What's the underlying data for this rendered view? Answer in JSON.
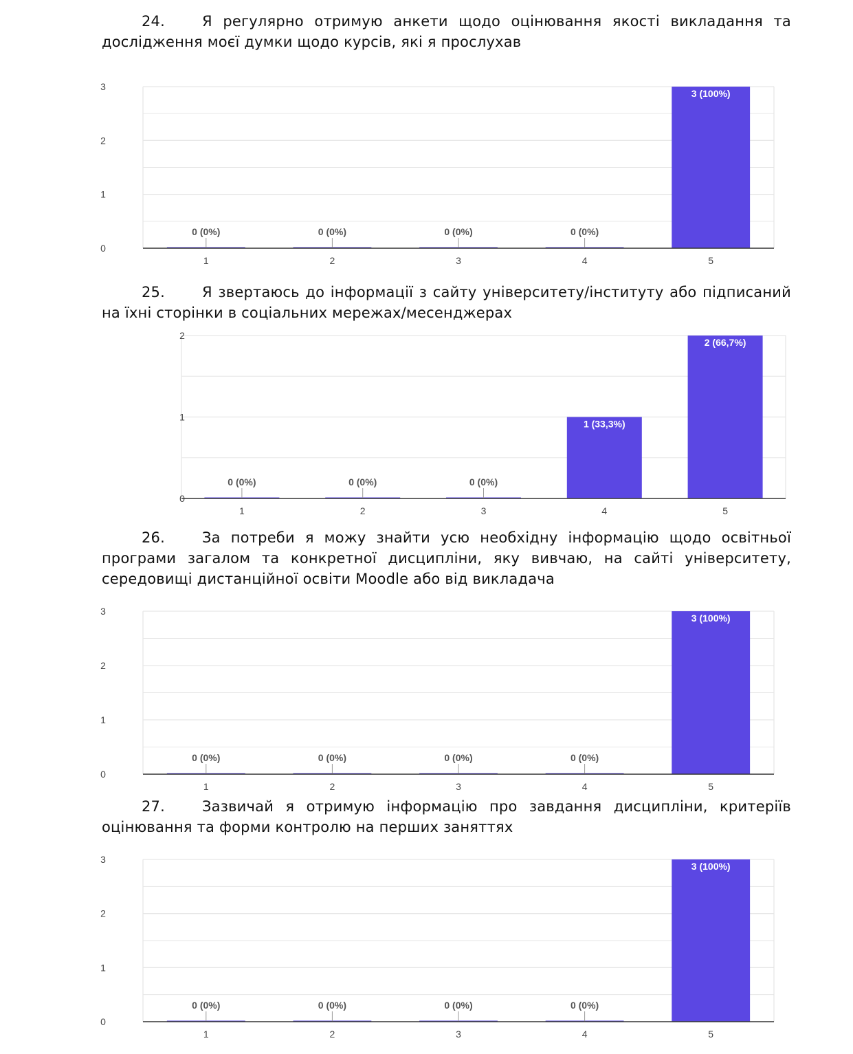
{
  "questions": [
    {
      "number": "24.",
      "text": "Я регулярно отримую анкети щодо оцінювання якості викладання та дослідження моєї думки щодо курсів, які я прослухав"
    },
    {
      "number": "25.",
      "text": "Я звертаюсь до інформації з сайту університету/інституту або підписаний на їхні сторінки в соціальних мережах/месенджерах"
    },
    {
      "number": "26.",
      "text": "За потреби я можу знайти усю необхідну інформацію щодо освітньої програми загалом та конкретної дисципліни, яку вивчаю, на сайті університету, середовищі дистанційної освіти Moodle або від викладача"
    },
    {
      "number": "27.",
      "text": "Зазвичай я отримую інформацію про завдання дисципліни, критеріїв оцінювання та форми контролю на перших заняттях"
    }
  ],
  "colors": {
    "bar": "#5b47e3",
    "grid": "#e6e6e6",
    "axis": "#333333"
  },
  "chart_data": [
    {
      "type": "bar",
      "categories": [
        "1",
        "2",
        "3",
        "4",
        "5"
      ],
      "values": [
        0,
        0,
        0,
        0,
        3
      ],
      "data_labels": [
        "0 (0%)",
        "0 (0%)",
        "0 (0%)",
        "0 (0%)",
        "3 (100%)"
      ],
      "yticks": [
        "0",
        "1",
        "2",
        "3"
      ],
      "ylim": [
        0,
        3
      ],
      "grid": true
    },
    {
      "type": "bar",
      "categories": [
        "1",
        "2",
        "3",
        "4",
        "5"
      ],
      "values": [
        0,
        0,
        0,
        1,
        2
      ],
      "data_labels": [
        "0 (0%)",
        "0 (0%)",
        "0 (0%)",
        "1 (33,3%)",
        "2 (66,7%)"
      ],
      "yticks": [
        "0",
        "1",
        "2"
      ],
      "ylim": [
        0,
        2
      ],
      "grid": true
    },
    {
      "type": "bar",
      "categories": [
        "1",
        "2",
        "3",
        "4",
        "5"
      ],
      "values": [
        0,
        0,
        0,
        0,
        3
      ],
      "data_labels": [
        "0 (0%)",
        "0 (0%)",
        "0 (0%)",
        "0 (0%)",
        "3 (100%)"
      ],
      "yticks": [
        "0",
        "1",
        "2",
        "3"
      ],
      "ylim": [
        0,
        3
      ],
      "grid": true
    },
    {
      "type": "bar",
      "categories": [
        "1",
        "2",
        "3",
        "4",
        "5"
      ],
      "values": [
        0,
        0,
        0,
        0,
        3
      ],
      "data_labels": [
        "0 (0%)",
        "0 (0%)",
        "0 (0%)",
        "0 (0%)",
        "3 (100%)"
      ],
      "yticks": [
        "0",
        "1",
        "2",
        "3"
      ],
      "ylim": [
        0,
        3
      ],
      "grid": true
    }
  ]
}
